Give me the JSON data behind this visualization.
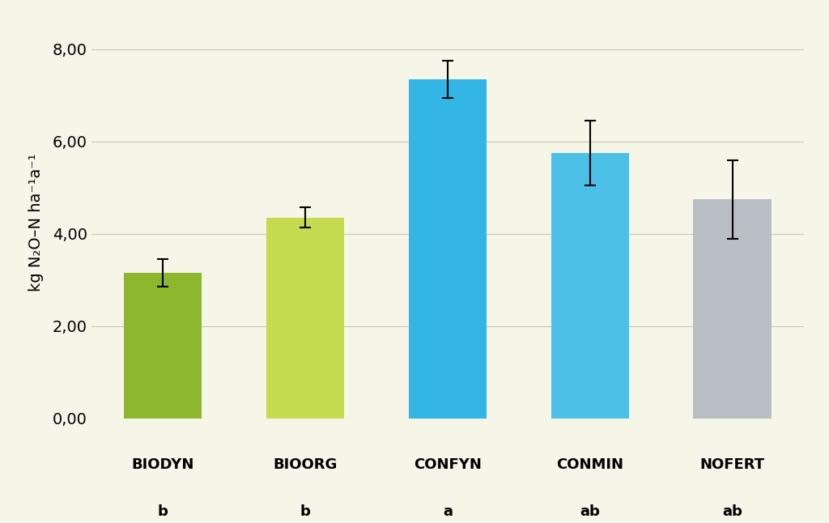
{
  "categories": [
    "BIODYN",
    "BIOORG",
    "CONFYN",
    "CONMIN",
    "NOFERT"
  ],
  "labels_below": [
    "b",
    "b",
    "a",
    "ab",
    "ab"
  ],
  "values": [
    3.15,
    4.35,
    7.35,
    5.75,
    4.75
  ],
  "errors": [
    0.3,
    0.22,
    0.4,
    0.7,
    0.85
  ],
  "bar_colors": [
    "#8db82e",
    "#c5dc50",
    "#33b5e5",
    "#4dc0e8",
    "#b8bec4"
  ],
  "background_color": "#f5f5e8",
  "ylabel": "kg N₂O–N ha⁻¹a⁻¹",
  "ylim": [
    0,
    8.5
  ],
  "yticks": [
    0.0,
    2.0,
    4.0,
    6.0,
    8.0
  ],
  "ytick_labels": [
    "0,00",
    "2,00",
    "4,00",
    "6,00",
    "8,00"
  ],
  "grid_color": "#c8c8b8",
  "error_capsize": 5,
  "bar_width": 0.55
}
